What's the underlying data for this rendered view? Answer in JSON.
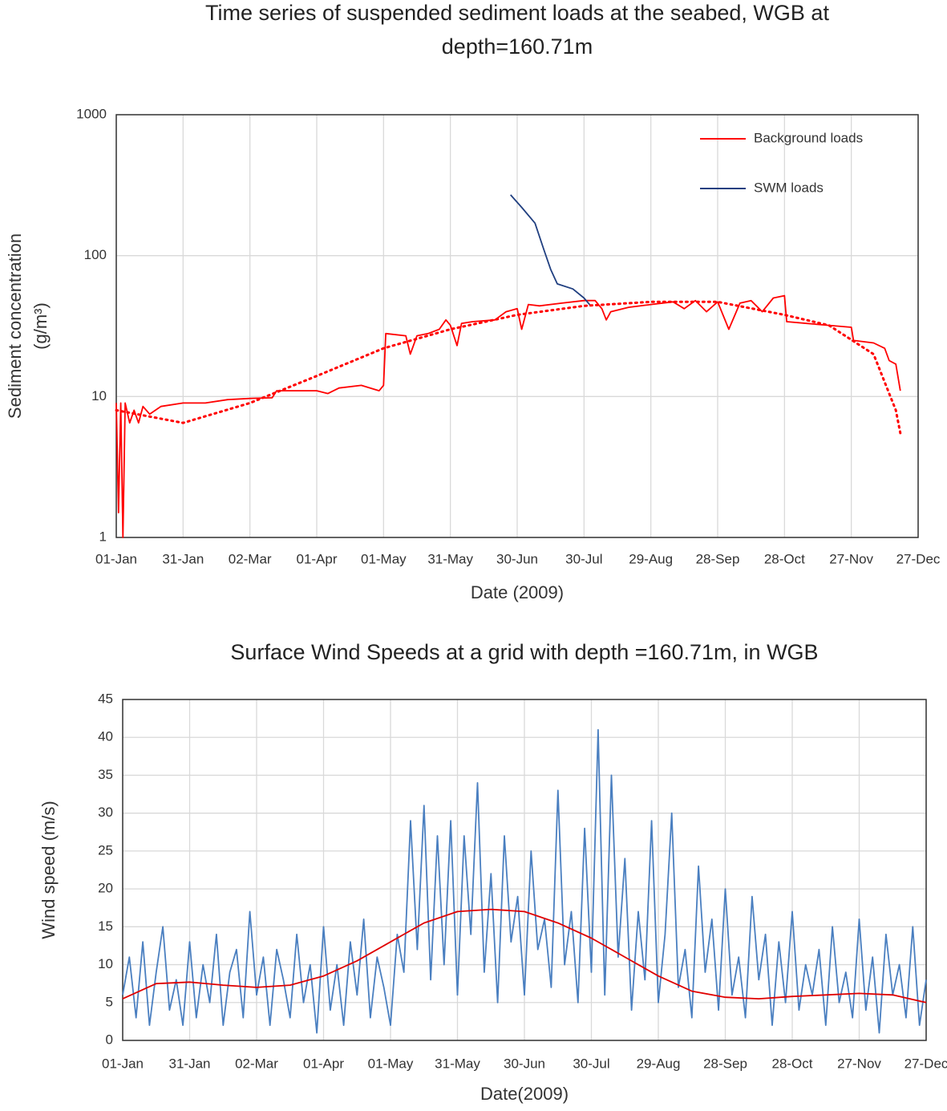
{
  "chart_data": [
    {
      "type": "line",
      "title": [
        "Time series of suspended sediment loads at the seabed, WGB at",
        "depth=160.71m"
      ],
      "xlabel": "Date (2009)",
      "ylabel": [
        "Sediment concentration",
        "(g/m³)"
      ],
      "yscale": "log",
      "grid": true,
      "legend": "upper right",
      "xlim": [
        0,
        360
      ],
      "xticks": [
        {
          "value": 0,
          "label": "01-Jan"
        },
        {
          "value": 30,
          "label": "31-Jan"
        },
        {
          "value": 60,
          "label": "02-Mar"
        },
        {
          "value": 90,
          "label": "01-Apr"
        },
        {
          "value": 120,
          "label": "01-May"
        },
        {
          "value": 150,
          "label": "31-May"
        },
        {
          "value": 180,
          "label": "30-Jun"
        },
        {
          "value": 210,
          "label": "30-Jul"
        },
        {
          "value": 240,
          "label": "29-Aug"
        },
        {
          "value": 270,
          "label": "28-Sep"
        },
        {
          "value": 300,
          "label": "28-Oct"
        },
        {
          "value": 330,
          "label": "27-Nov"
        },
        {
          "value": 360,
          "label": "27-Dec"
        }
      ],
      "ylim": [
        1,
        1000
      ],
      "yticks": [
        1,
        10,
        100,
        1000
      ],
      "series": [
        {
          "name": "Background loads",
          "color": "#ff0000",
          "x": [
            0,
            1,
            2,
            3,
            4,
            6,
            8,
            10,
            12,
            15,
            20,
            30,
            40,
            50,
            60,
            70,
            72,
            80,
            90,
            95,
            100,
            110,
            118,
            120,
            121,
            130,
            132,
            135,
            140,
            145,
            148,
            150,
            153,
            155,
            160,
            170,
            175,
            180,
            182,
            185,
            190,
            200,
            210,
            215,
            218,
            220,
            222,
            230,
            240,
            250,
            255,
            260,
            265,
            270,
            275,
            280,
            285,
            290,
            295,
            300,
            301,
            310,
            320,
            330,
            331,
            340,
            345,
            347,
            350,
            352
          ],
          "values": [
            9,
            1.5,
            9,
            1.0,
            9,
            6.5,
            8,
            6.5,
            8.5,
            7.5,
            8.5,
            9,
            9,
            9.5,
            9.7,
            9.8,
            11,
            11,
            11,
            10.5,
            11.5,
            12,
            11,
            12,
            28,
            27,
            20,
            27,
            28,
            30,
            35,
            32,
            23,
            33,
            34,
            35,
            40,
            42,
            30,
            45,
            44,
            46,
            48,
            48,
            42,
            35,
            40,
            43,
            45,
            47,
            42,
            48,
            40,
            47,
            30,
            46,
            48,
            40,
            50,
            52,
            34,
            33,
            32,
            31,
            25,
            24,
            22,
            18,
            17,
            11
          ]
        },
        {
          "name": "SWM loads",
          "color": "#203f80",
          "x": [
            177,
            182,
            188,
            192,
            195,
            198,
            205,
            210,
            213
          ],
          "values": [
            270,
            220,
            170,
            110,
            80,
            63,
            58,
            50,
            44
          ]
        },
        {
          "color": "#ff0000",
          "style": "dotted",
          "x": [
            0,
            30,
            60,
            90,
            120,
            150,
            180,
            210,
            240,
            270,
            300,
            320,
            340,
            350,
            352
          ],
          "values": [
            8,
            6.5,
            9,
            14,
            22,
            30,
            38,
            44,
            47,
            47,
            38,
            32,
            20,
            8,
            5.5
          ]
        }
      ]
    },
    {
      "type": "line",
      "title": "Surface Wind Speeds  at a grid with depth =160.71m,  in WGB",
      "xlabel": "Date(2009)",
      "ylabel": "Wind speed (m/s)",
      "grid": true,
      "xlim": [
        0,
        360
      ],
      "xticks": [
        {
          "value": 0,
          "label": "01-Jan"
        },
        {
          "value": 30,
          "label": "31-Jan"
        },
        {
          "value": 60,
          "label": "02-Mar"
        },
        {
          "value": 90,
          "label": "01-Apr"
        },
        {
          "value": 120,
          "label": "01-May"
        },
        {
          "value": 150,
          "label": "31-May"
        },
        {
          "value": 180,
          "label": "30-Jun"
        },
        {
          "value": 210,
          "label": "30-Jul"
        },
        {
          "value": 240,
          "label": "29-Aug"
        },
        {
          "value": 270,
          "label": "28-Sep"
        },
        {
          "value": 300,
          "label": "28-Oct"
        },
        {
          "value": 330,
          "label": "27-Nov"
        },
        {
          "value": 360,
          "label": "27-Dec"
        }
      ],
      "ylim": [
        0,
        45
      ],
      "yticks": [
        0,
        5,
        10,
        15,
        20,
        25,
        30,
        35,
        40,
        45
      ],
      "series": [
        {
          "color": "#4a7fc0",
          "x": [
            0,
            3,
            6,
            9,
            12,
            15,
            18,
            21,
            24,
            27,
            30,
            33,
            36,
            39,
            42,
            45,
            48,
            51,
            54,
            57,
            60,
            63,
            66,
            69,
            72,
            75,
            78,
            81,
            84,
            87,
            90,
            93,
            96,
            99,
            102,
            105,
            108,
            111,
            114,
            117,
            120,
            123,
            126,
            129,
            132,
            135,
            138,
            141,
            144,
            147,
            150,
            153,
            156,
            159,
            162,
            165,
            168,
            171,
            174,
            177,
            180,
            183,
            186,
            189,
            192,
            195,
            198,
            201,
            204,
            207,
            210,
            213,
            216,
            219,
            222,
            225,
            228,
            231,
            234,
            237,
            240,
            243,
            246,
            249,
            252,
            255,
            258,
            261,
            264,
            267,
            270,
            273,
            276,
            279,
            282,
            285,
            288,
            291,
            294,
            297,
            300,
            303,
            306,
            309,
            312,
            315,
            318,
            321,
            324,
            327,
            330,
            333,
            336,
            339,
            342,
            345,
            348,
            351,
            354,
            357,
            360
          ],
          "values": [
            6,
            11,
            3,
            13,
            2,
            9,
            15,
            4,
            8,
            2,
            13,
            3,
            10,
            5,
            14,
            2,
            9,
            12,
            3,
            17,
            6,
            11,
            2,
            12,
            8,
            3,
            14,
            5,
            10,
            1,
            15,
            4,
            10,
            2,
            13,
            6,
            16,
            3,
            11,
            7,
            2,
            14,
            9,
            29,
            12,
            31,
            8,
            27,
            10,
            29,
            6,
            27,
            14,
            34,
            9,
            22,
            5,
            27,
            13,
            19,
            6,
            25,
            12,
            16,
            7,
            33,
            10,
            17,
            5,
            28,
            9,
            41,
            6,
            35,
            11,
            24,
            4,
            17,
            8,
            29,
            5,
            14,
            30,
            7,
            12,
            3,
            23,
            9,
            16,
            4,
            20,
            6,
            11,
            3,
            19,
            8,
            14,
            2,
            13,
            5,
            17,
            4,
            10,
            6,
            12,
            2,
            15,
            5,
            9,
            3,
            16,
            4,
            11,
            1,
            14,
            6,
            10,
            3,
            15,
            2,
            8
          ]
        },
        {
          "color": "#e00000",
          "x": [
            0,
            15,
            30,
            45,
            60,
            75,
            90,
            105,
            120,
            135,
            150,
            165,
            180,
            195,
            210,
            225,
            240,
            255,
            270,
            285,
            300,
            315,
            330,
            345,
            360
          ],
          "values": [
            5.5,
            7.5,
            7.7,
            7.3,
            7,
            7.3,
            8.5,
            10.5,
            13,
            15.5,
            17,
            17.3,
            17,
            15.5,
            13.5,
            11,
            8.5,
            6.5,
            5.7,
            5.5,
            5.8,
            6,
            6.2,
            6,
            5
          ]
        }
      ]
    }
  ]
}
